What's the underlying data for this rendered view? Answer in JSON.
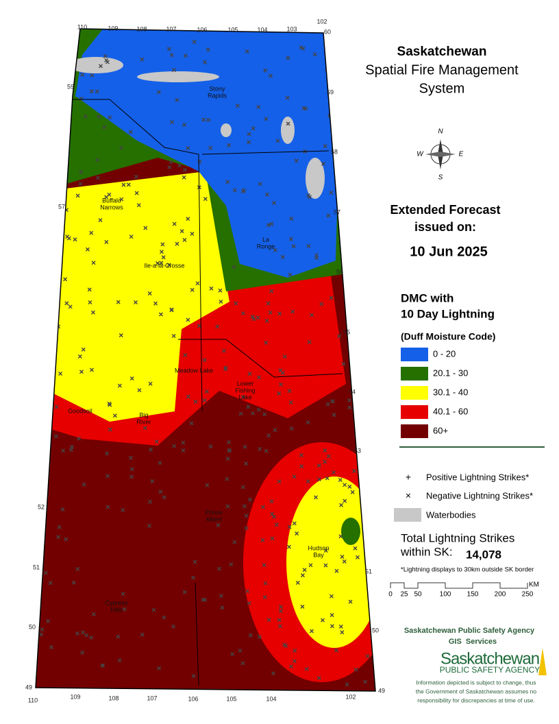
{
  "header": {
    "title": "Saskatchewan",
    "subtitle_lines": [
      "Spatial Fire Management",
      "System"
    ]
  },
  "forecast": {
    "heading_lines": [
      "Extended Forecast",
      "issued on:"
    ],
    "date": "10 Jun 2025"
  },
  "legend": {
    "title_lines": [
      "DMC with",
      "10 Day Lightning"
    ],
    "subtitle": "(Duff Moisture Code)",
    "classes": [
      {
        "label": "0 - 20",
        "color": "#1560e8"
      },
      {
        "label": "20.1 - 30",
        "color": "#267000"
      },
      {
        "label": "30.1 - 40",
        "color": "#ffff00"
      },
      {
        "label": "40.1 - 60",
        "color": "#e60000"
      },
      {
        "label": "60+",
        "color": "#730000"
      }
    ],
    "symbols": [
      {
        "symbol": "+",
        "label": "Positive Lightning Strikes*"
      },
      {
        "symbol": "×",
        "label": "Negative Lightning Strikes*"
      },
      {
        "label": "Waterbodies",
        "color": "#c8c8c8"
      }
    ]
  },
  "totals": {
    "label_lines": [
      "Total Lightning Strikes",
      "within SK:"
    ],
    "value": "14,078",
    "note": "*Lightning displays to 30km outside SK border"
  },
  "scale": {
    "ticks": [
      0,
      25,
      50,
      100,
      150,
      200,
      250
    ],
    "unit": "KM"
  },
  "map": {
    "longitudes_top": [
      110,
      109,
      108,
      107,
      106,
      105,
      104,
      103,
      102
    ],
    "longitudes_bottom": [
      110,
      109,
      108,
      107,
      106,
      105,
      104,
      102
    ],
    "latitudes_left": [
      59,
      57,
      52,
      51,
      50,
      49
    ],
    "latitudes_right": [
      60,
      59,
      58,
      57,
      56,
      55,
      54,
      53,
      51,
      50,
      49
    ],
    "places": [
      {
        "lines": [
          "Stony",
          "Rapids"
        ]
      },
      {
        "lines": [
          "Buffalo",
          "Narrows"
        ]
      },
      {
        "lines": [
          "La",
          "Ronge"
        ]
      },
      {
        "lines": [
          "Ile-a-la-Crosse"
        ]
      },
      {
        "lines": [
          "Meadow Lake"
        ]
      },
      {
        "lines": [
          "Lower",
          "Fishing",
          "Lake"
        ]
      },
      {
        "lines": [
          "Goodsoil"
        ]
      },
      {
        "lines": [
          "Big",
          "River"
        ]
      },
      {
        "lines": [
          "Prince",
          "Albert"
        ]
      },
      {
        "lines": [
          "Hudson",
          "Bay"
        ]
      },
      {
        "lines": [
          "Cypress",
          "Hills"
        ]
      }
    ]
  },
  "footer": {
    "agency": "Saskatchewan Public Safety Agency",
    "department": "GIS  Services",
    "logo_lines": [
      "Saskatchewan",
      "PUBLIC SAFETY AGENCY"
    ],
    "disclaimer_lines": [
      "Information depicted is subject to change, thus",
      "the Government of Saskatchewan assumes no",
      "responsibility for discrepancies at time of use."
    ]
  }
}
